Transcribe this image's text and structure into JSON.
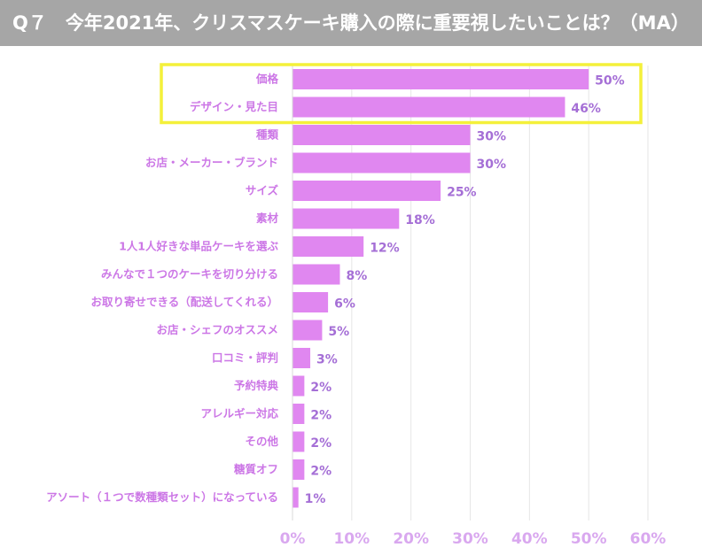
{
  "header": {
    "title": "Q７　今年2021年、クリスマスケーキ購入の際に重要視したいことは？（MA）"
  },
  "colors": {
    "header_bg": "#a6a6a6",
    "bar_fill": "#e087f0",
    "highlight_border": "#f4f03a",
    "gridline": "#e6e6e6"
  },
  "chart_data": {
    "type": "bar",
    "orientation": "horizontal",
    "title": "",
    "xlabel": "",
    "ylabel": "",
    "xlim": [
      0,
      60
    ],
    "ticks": [
      0,
      10,
      20,
      30,
      40,
      50,
      60
    ],
    "tick_labels": [
      "0%",
      "10%",
      "20%",
      "30%",
      "40%",
      "50%",
      "60%"
    ],
    "categories": [
      "価格",
      "デザイン・見た目",
      "種類",
      "お店・メーカー・ブランド",
      "サイズ",
      "素材",
      "1人1人好きな単品ケーキを選ぶ",
      "みんなで１つのケーキを切り分ける",
      "お取り寄せできる（配送してくれる）",
      "お店・シェフのオススメ",
      "口コミ・評判",
      "予約特典",
      "アレルギー対応",
      "その他",
      "糖質オフ",
      "アソート（１つで数種類セット）になっている"
    ],
    "values": [
      50,
      46,
      30,
      30,
      25,
      18,
      12,
      8,
      6,
      5,
      3,
      2,
      2,
      2,
      2,
      1
    ],
    "value_labels": [
      "50%",
      "46%",
      "30%",
      "30%",
      "25%",
      "18%",
      "12%",
      "8%",
      "6%",
      "5%",
      "3%",
      "2%",
      "2%",
      "2%",
      "2%",
      "1%"
    ],
    "highlighted": [
      0,
      1
    ],
    "grid": true
  }
}
